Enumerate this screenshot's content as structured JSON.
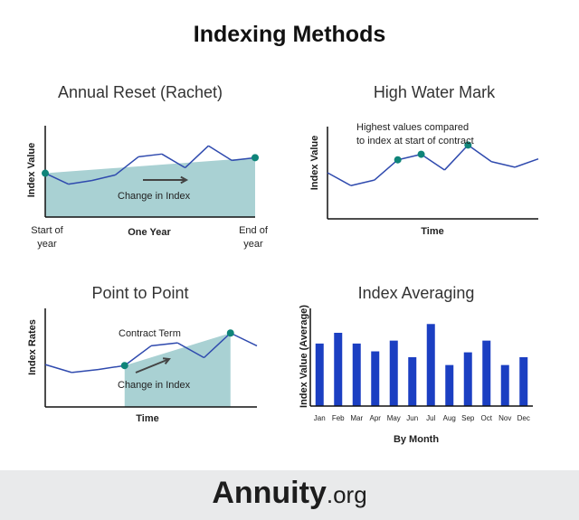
{
  "main_title": "Indexing Methods",
  "footer": {
    "brand": "Annuity",
    "brand_ext": ".org"
  },
  "colors": {
    "line": "#2f4aae",
    "fill": "#a9d1d3",
    "dot": "#0f8479",
    "bar": "#1b3fc2",
    "axis": "#111111",
    "arrow": "#444444"
  },
  "panels": {
    "annual_reset": {
      "title": "Annual Reset (Rachet)",
      "ylabel": "Index Value",
      "xlabel": "One Year",
      "start_label": [
        "Start of",
        "year"
      ],
      "end_label": [
        "End of",
        "year"
      ],
      "annotation": "Change in Index"
    },
    "high_water": {
      "title": "High Water Mark",
      "ylabel": "Index Value",
      "xlabel": "Time",
      "annotation_lines": [
        "Highest values compared",
        "to index at start of contract"
      ]
    },
    "point_to_point": {
      "title": "Point to Point",
      "ylabel": "Index Rates",
      "xlabel": "Time",
      "annotation_top": "Contract Term",
      "annotation": "Change in Index"
    },
    "averaging": {
      "title": "Index Averaging",
      "ylabel": "Index Value (Average)",
      "xlabel": "By Month"
    }
  },
  "chart_data": [
    {
      "type": "line",
      "title": "Annual Reset (Rachet)",
      "xlabel": "One Year",
      "ylabel": "Index Value",
      "x": [
        0,
        1,
        2,
        3,
        4,
        5,
        6,
        7,
        8,
        9
      ],
      "values": [
        48,
        36,
        40,
        46,
        66,
        69,
        54,
        78,
        62,
        65
      ],
      "ylim": [
        0,
        100
      ],
      "highlighted_points": [
        0,
        9
      ]
    },
    {
      "type": "line",
      "title": "High Water Mark",
      "xlabel": "Time",
      "ylabel": "Index Value",
      "x": [
        0,
        1,
        2,
        3,
        4,
        5,
        6,
        7,
        8,
        9
      ],
      "values": [
        50,
        36,
        42,
        64,
        70,
        53,
        80,
        62,
        56,
        65
      ],
      "ylim": [
        0,
        100
      ],
      "highlighted_points": [
        3,
        4,
        6
      ]
    },
    {
      "type": "line",
      "title": "Point to Point",
      "xlabel": "Time",
      "ylabel": "Index Rates",
      "x": [
        0,
        1,
        2,
        3,
        4,
        5,
        6,
        7,
        8
      ],
      "values": [
        43,
        35,
        38,
        42,
        62,
        65,
        50,
        75,
        62
      ],
      "ylim": [
        0,
        100
      ],
      "highlighted_points": [
        3,
        7
      ]
    },
    {
      "type": "bar",
      "title": "Index Averaging",
      "xlabel": "By Month",
      "ylabel": "Index Value (Average)",
      "categories": [
        "Jan",
        "Feb",
        "Mar",
        "Apr",
        "May",
        "Jun",
        "Jul",
        "Aug",
        "Sep",
        "Oct",
        "Nov",
        "Dec"
      ],
      "values": [
        64,
        75,
        64,
        56,
        67,
        50,
        84,
        42,
        55,
        67,
        42,
        50
      ],
      "ylim": [
        0,
        100
      ]
    }
  ]
}
